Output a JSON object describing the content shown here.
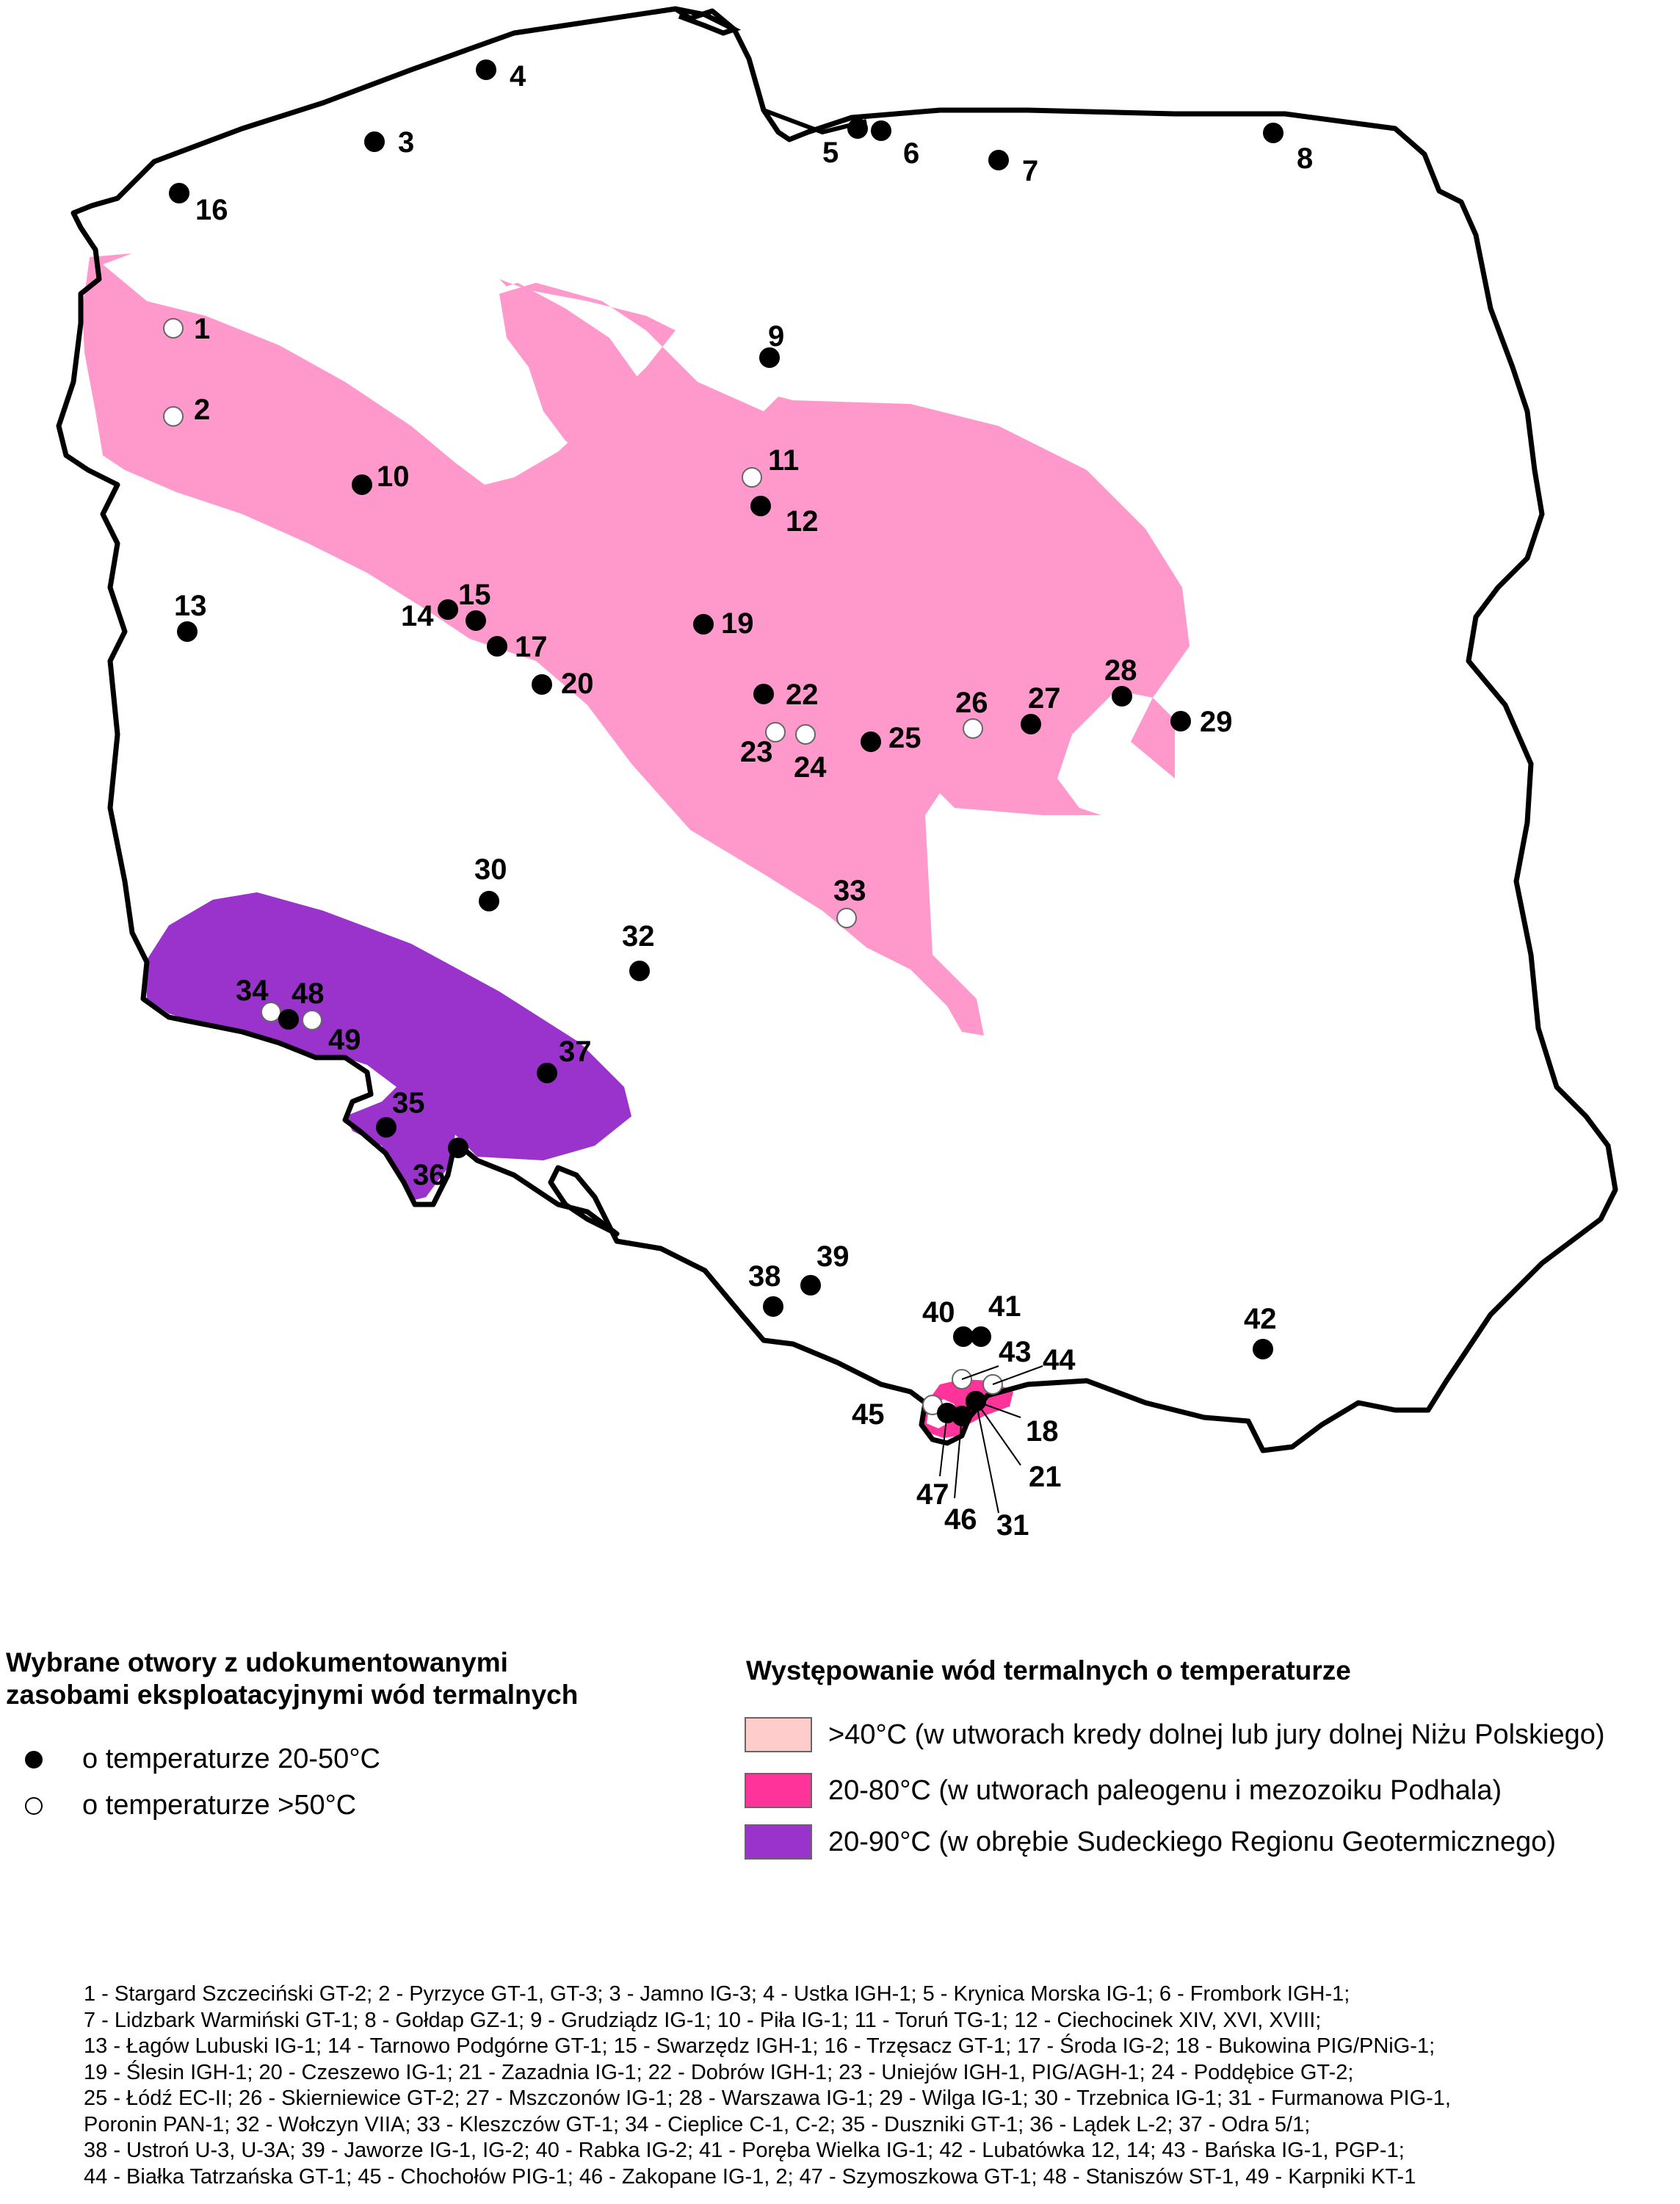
{
  "legend_wells": {
    "title_lines": [
      "Wybrane otwory z udokumentowanymi",
      "zasobami eksploatacyjnymi wód termalnych"
    ],
    "items": [
      {
        "label": "o temperaturze 20-50°C",
        "marker": "filled-black-dot"
      },
      {
        "label": "o temperaturze >50°C",
        "marker": "hollow-white-dot"
      }
    ]
  },
  "legend_zones": {
    "title": "Występowanie wód termalnych o temperaturze",
    "items": [
      {
        "label": ">40°C (w utworach kredy dolnej lub jury dolnej Niżu Polskiego)",
        "color": "#ff99cc",
        "swatch_color": "#ffcccc"
      },
      {
        "label": "20-80°C (w utworach paleogenu i mezozoiku Podhala)",
        "color": "#ff3399"
      },
      {
        "label": "20-90°C (w obrębie Sudeckiego Regionu Geotermicznego)",
        "color": "#9933cc"
      }
    ]
  },
  "wells": [
    {
      "n": "1",
      "type": "hot"
    },
    {
      "n": "2",
      "type": "hot"
    },
    {
      "n": "3",
      "type": "warm"
    },
    {
      "n": "4",
      "type": "warm"
    },
    {
      "n": "5",
      "type": "warm"
    },
    {
      "n": "6",
      "type": "warm"
    },
    {
      "n": "7",
      "type": "warm"
    },
    {
      "n": "8",
      "type": "warm"
    },
    {
      "n": "9",
      "type": "warm"
    },
    {
      "n": "10",
      "type": "warm"
    },
    {
      "n": "11",
      "type": "hot"
    },
    {
      "n": "12",
      "type": "warm"
    },
    {
      "n": "13",
      "type": "warm"
    },
    {
      "n": "14",
      "type": "warm"
    },
    {
      "n": "15",
      "type": "warm"
    },
    {
      "n": "16",
      "type": "warm"
    },
    {
      "n": "17",
      "type": "warm"
    },
    {
      "n": "18",
      "type": "warm"
    },
    {
      "n": "19",
      "type": "warm"
    },
    {
      "n": "20",
      "type": "warm"
    },
    {
      "n": "21",
      "type": "warm"
    },
    {
      "n": "22",
      "type": "warm"
    },
    {
      "n": "23",
      "type": "hot"
    },
    {
      "n": "24",
      "type": "hot"
    },
    {
      "n": "25",
      "type": "warm"
    },
    {
      "n": "26",
      "type": "hot"
    },
    {
      "n": "27",
      "type": "warm"
    },
    {
      "n": "28",
      "type": "warm"
    },
    {
      "n": "29",
      "type": "warm"
    },
    {
      "n": "30",
      "type": "warm"
    },
    {
      "n": "31",
      "type": "warm"
    },
    {
      "n": "32",
      "type": "warm"
    },
    {
      "n": "33",
      "type": "hot"
    },
    {
      "n": "34",
      "type": "hot"
    },
    {
      "n": "35",
      "type": "warm"
    },
    {
      "n": "36",
      "type": "warm"
    },
    {
      "n": "37",
      "type": "warm"
    },
    {
      "n": "38",
      "type": "warm"
    },
    {
      "n": "39",
      "type": "warm"
    },
    {
      "n": "40",
      "type": "warm"
    },
    {
      "n": "41",
      "type": "warm"
    },
    {
      "n": "42",
      "type": "warm"
    },
    {
      "n": "43",
      "type": "hot"
    },
    {
      "n": "44",
      "type": "hot"
    },
    {
      "n": "45",
      "type": "hot"
    },
    {
      "n": "46",
      "type": "warm"
    },
    {
      "n": "47",
      "type": "warm"
    },
    {
      "n": "48",
      "type": "warm"
    },
    {
      "n": "49",
      "type": "hot"
    }
  ],
  "footnote_lines": [
    "1 - Stargard Szczeciński GT-2; 2 - Pyrzyce GT-1, GT-3; 3 - Jamno IG-3; 4 - Ustka IGH-1; 5 - Krynica Morska IG-1; 6 - Frombork IGH-1;",
    "7 - Lidzbark Warmiński GT-1; 8 - Gołdap GZ-1; 9 - Grudziądz IG-1; 10 - Piła IG-1; 11 - Toruń TG-1; 12 - Ciechocinek XIV, XVI, XVIII;",
    "13 - Łagów Lubuski IG-1; 14 - Tarnowo Podgórne GT-1; 15 - Swarzędz IGH-1; 16 - Trzęsacz GT-1; 17 - Środa IG-2; 18 - Bukowina PIG/PNiG-1;",
    "19 - Ślesin IGH-1; 20 - Czeszewo IG-1; 21 - Zazadnia IG-1; 22 - Dobrów IGH-1; 23 - Uniejów IGH-1, PIG/AGH-1; 24 - Poddębice GT-2;",
    "25 - Łódź EC-II; 26 - Skierniewice GT-2; 27 - Mszczonów IG-1; 28 - Warszawa IG-1; 29 - Wilga IG-1; 30 - Trzebnica IG-1; 31 - Furmanowa PIG-1,",
    "Poronin PAN-1; 32 - Wołczyn VIIA; 33 - Kleszczów GT-1; 34 - Cieplice C-1, C-2; 35 - Duszniki GT-1; 36 - Lądek L-2; 37 - Odra 5/1;",
    "38 - Ustroń U-3, U-3A; 39 - Jaworze IG-1, IG-2; 40 - Rabka IG-2; 41 - Poręba Wielka IG-1; 42 - Lubatówka 12, 14; 43 - Bańska IG-1, PGP-1;",
    "44 - Białka Tatrzańska GT-1; 45 - Chochołów PIG-1; 46 - Zakopane IG-1, 2; 47 - Szymoszkowa GT-1; 48 - Staniszów ST-1, 49 - Karpniki KT-1"
  ]
}
